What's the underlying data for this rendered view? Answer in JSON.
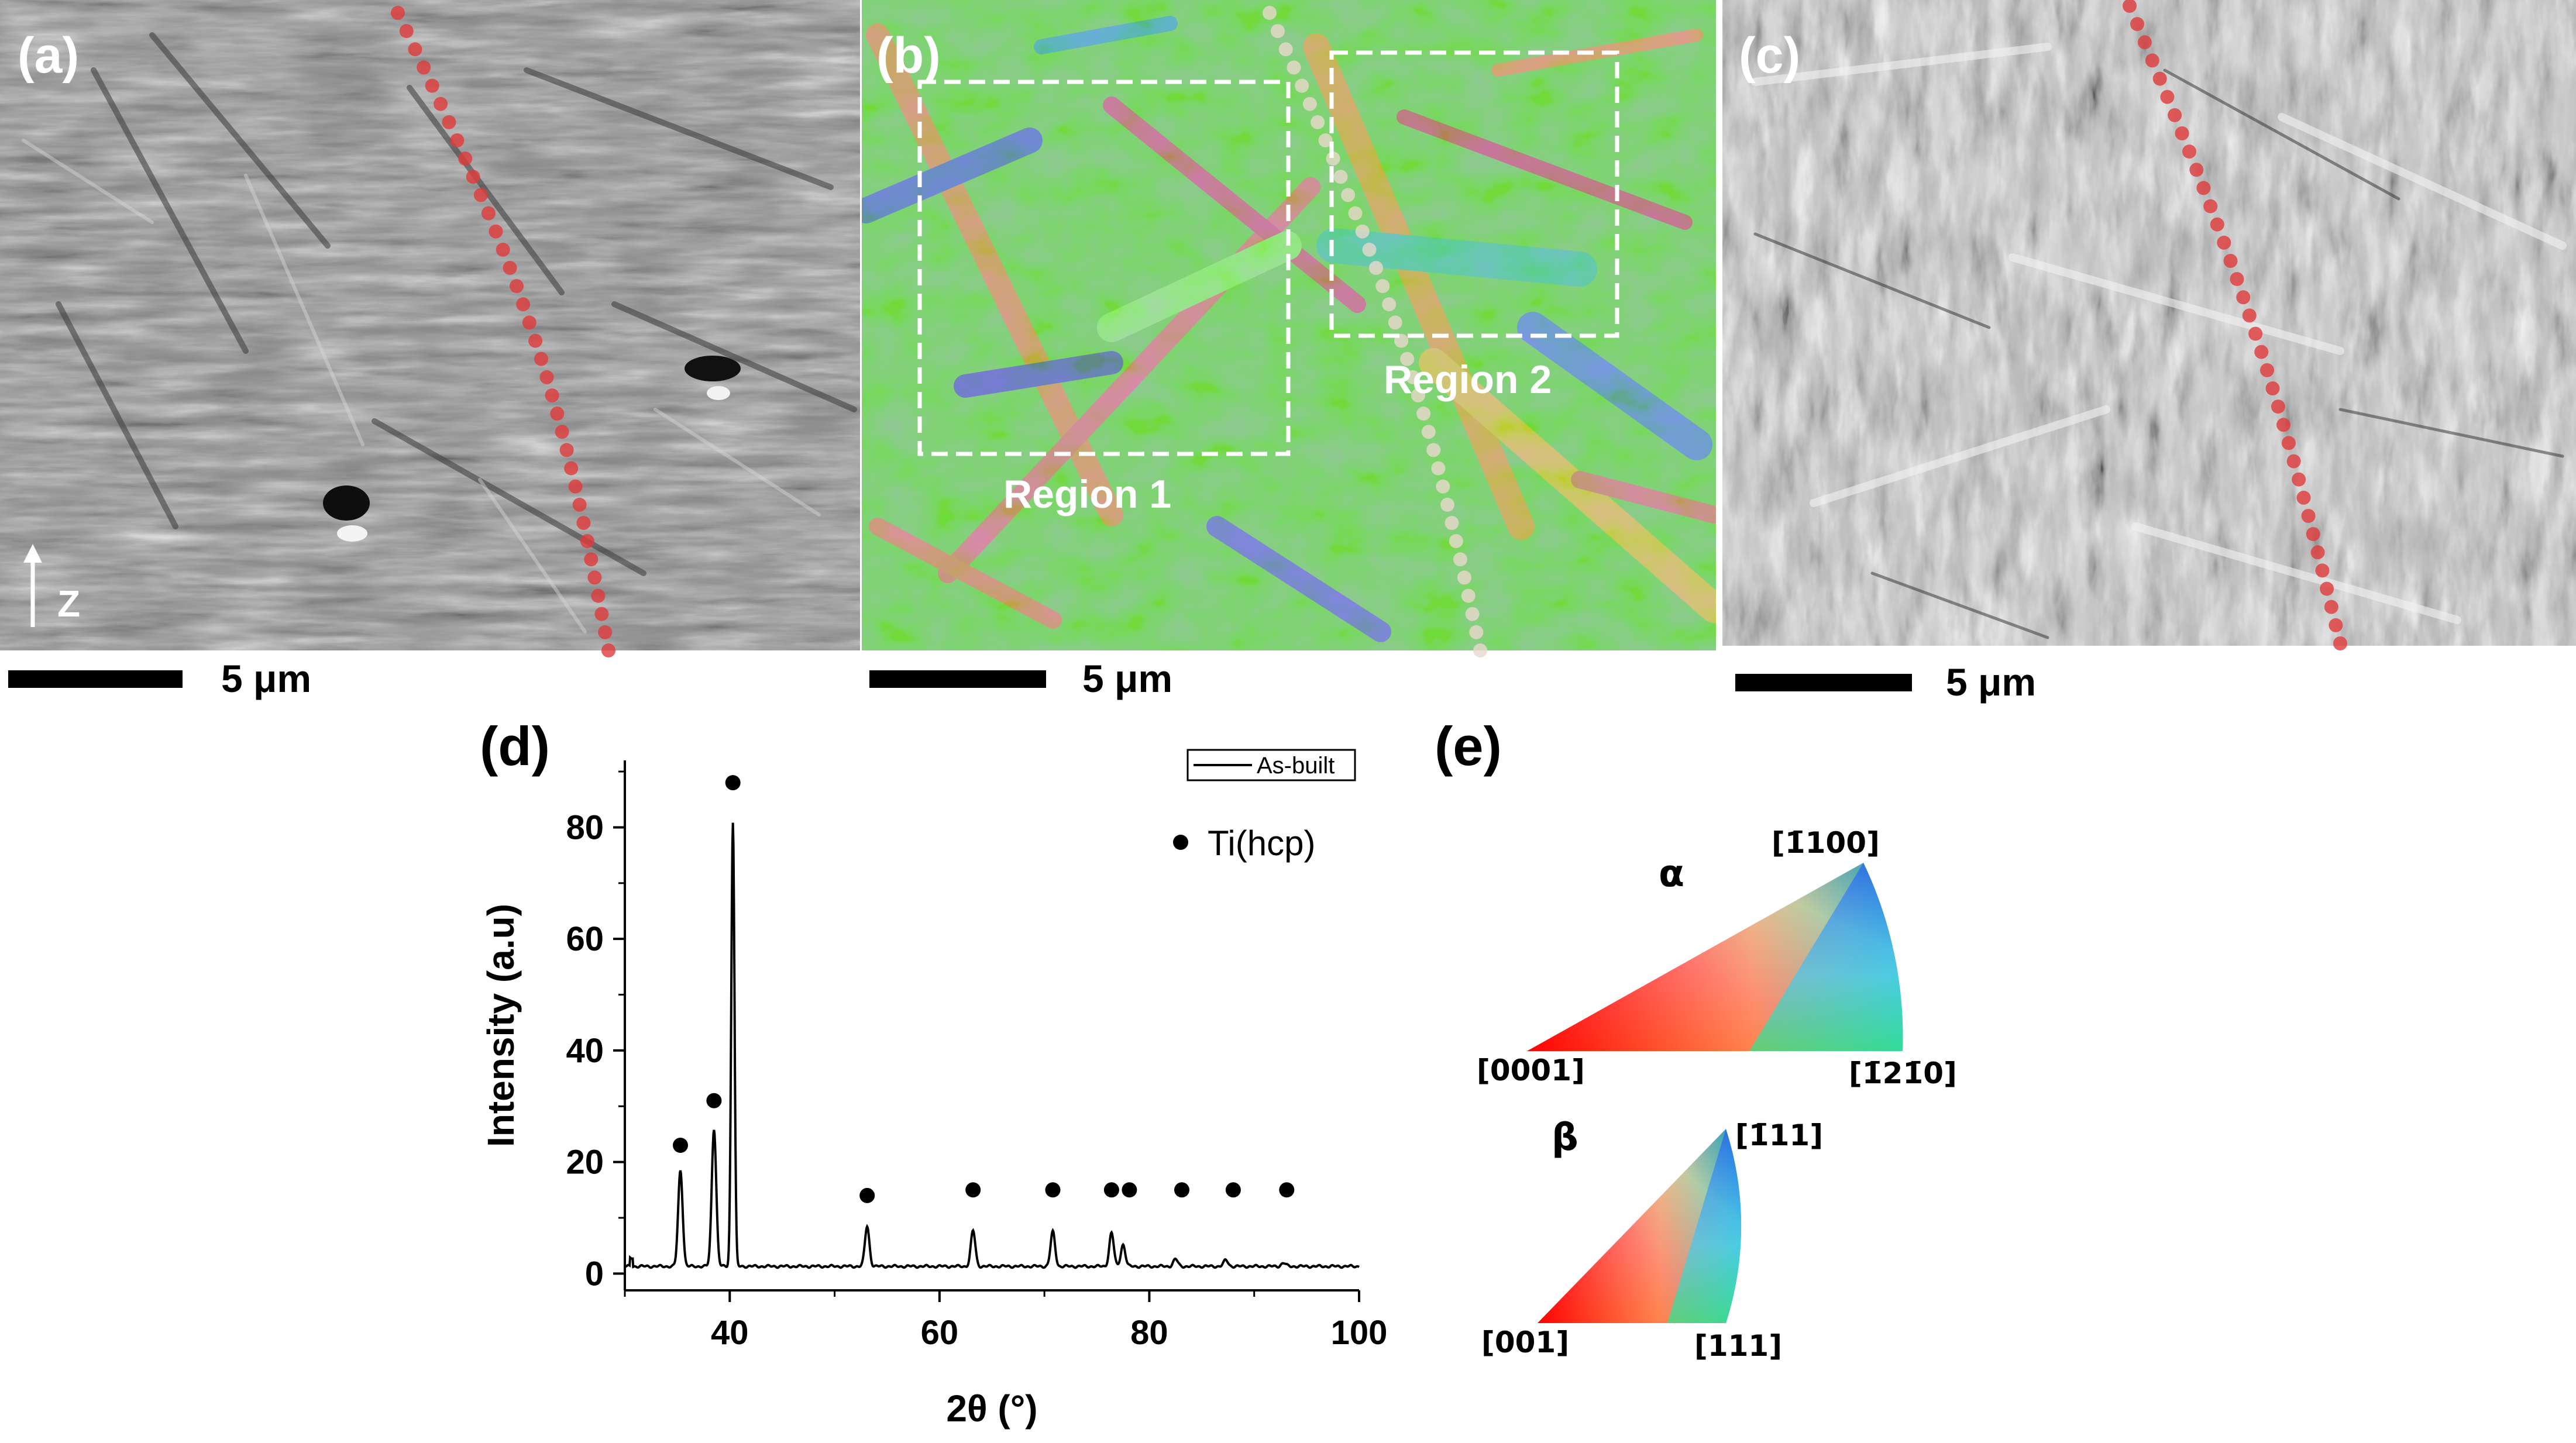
{
  "panels": {
    "a": {
      "label": "(a)",
      "scale_label": "5 μm",
      "axis_label": "Z"
    },
    "b": {
      "label": "(b)",
      "scale_label": "5 μm",
      "region1": "Region 1",
      "region2": "Region 2"
    },
    "c": {
      "label": "(c)",
      "scale_label": "5 μm"
    },
    "d": {
      "label": "(d)"
    },
    "e": {
      "label": "(e)"
    }
  },
  "chart_data": {
    "type": "line",
    "xlabel": "2θ (°)",
    "ylabel": "Intensity (a.u)",
    "xlim": [
      30,
      100
    ],
    "ylim": [
      -3,
      92
    ],
    "xticks": [
      40,
      60,
      80,
      100
    ],
    "yticks": [
      0,
      20,
      40,
      60,
      80
    ],
    "legend": {
      "line_label": "As-built",
      "marker_label": "Ti(hcp)",
      "placement": "top-right"
    },
    "baseline": 1.3,
    "peaks": [
      {
        "x": 35.3,
        "y": 18.5
      },
      {
        "x": 38.5,
        "y": 26
      },
      {
        "x": 40.3,
        "y": 81
      },
      {
        "x": 53.1,
        "y": 8.5
      },
      {
        "x": 63.2,
        "y": 7.7
      },
      {
        "x": 70.8,
        "y": 7.5
      },
      {
        "x": 76.4,
        "y": 7.3
      },
      {
        "x": 77.5,
        "y": 5.2
      },
      {
        "x": 82.5,
        "y": 2.6
      },
      {
        "x": 87.3,
        "y": 2.4
      },
      {
        "x": 92.8,
        "y": 1.9
      }
    ],
    "markers": [
      {
        "x": 35.3,
        "y": 23
      },
      {
        "x": 38.5,
        "y": 31
      },
      {
        "x": 40.3,
        "y": 88
      },
      {
        "x": 53.1,
        "y": 14
      },
      {
        "x": 63.2,
        "y": 15
      },
      {
        "x": 70.8,
        "y": 15
      },
      {
        "x": 76.4,
        "y": 15
      },
      {
        "x": 78.1,
        "y": 15
      },
      {
        "x": 83.1,
        "y": 15
      },
      {
        "x": 88.0,
        "y": 15
      },
      {
        "x": 93.1,
        "y": 15
      }
    ]
  },
  "ipf": {
    "alpha": {
      "symbol": "α",
      "top": "[1̄100]",
      "left": "[0001]",
      "right": "[1̄21̄0]"
    },
    "beta": {
      "symbol": "β",
      "top": "[1̄11]",
      "left": "[001]",
      "right": "[111]"
    }
  },
  "colors": {
    "trace_dots": "#e03a3a",
    "trace_dots_b": "#e8d8cc",
    "region_box": "#ffffff"
  }
}
